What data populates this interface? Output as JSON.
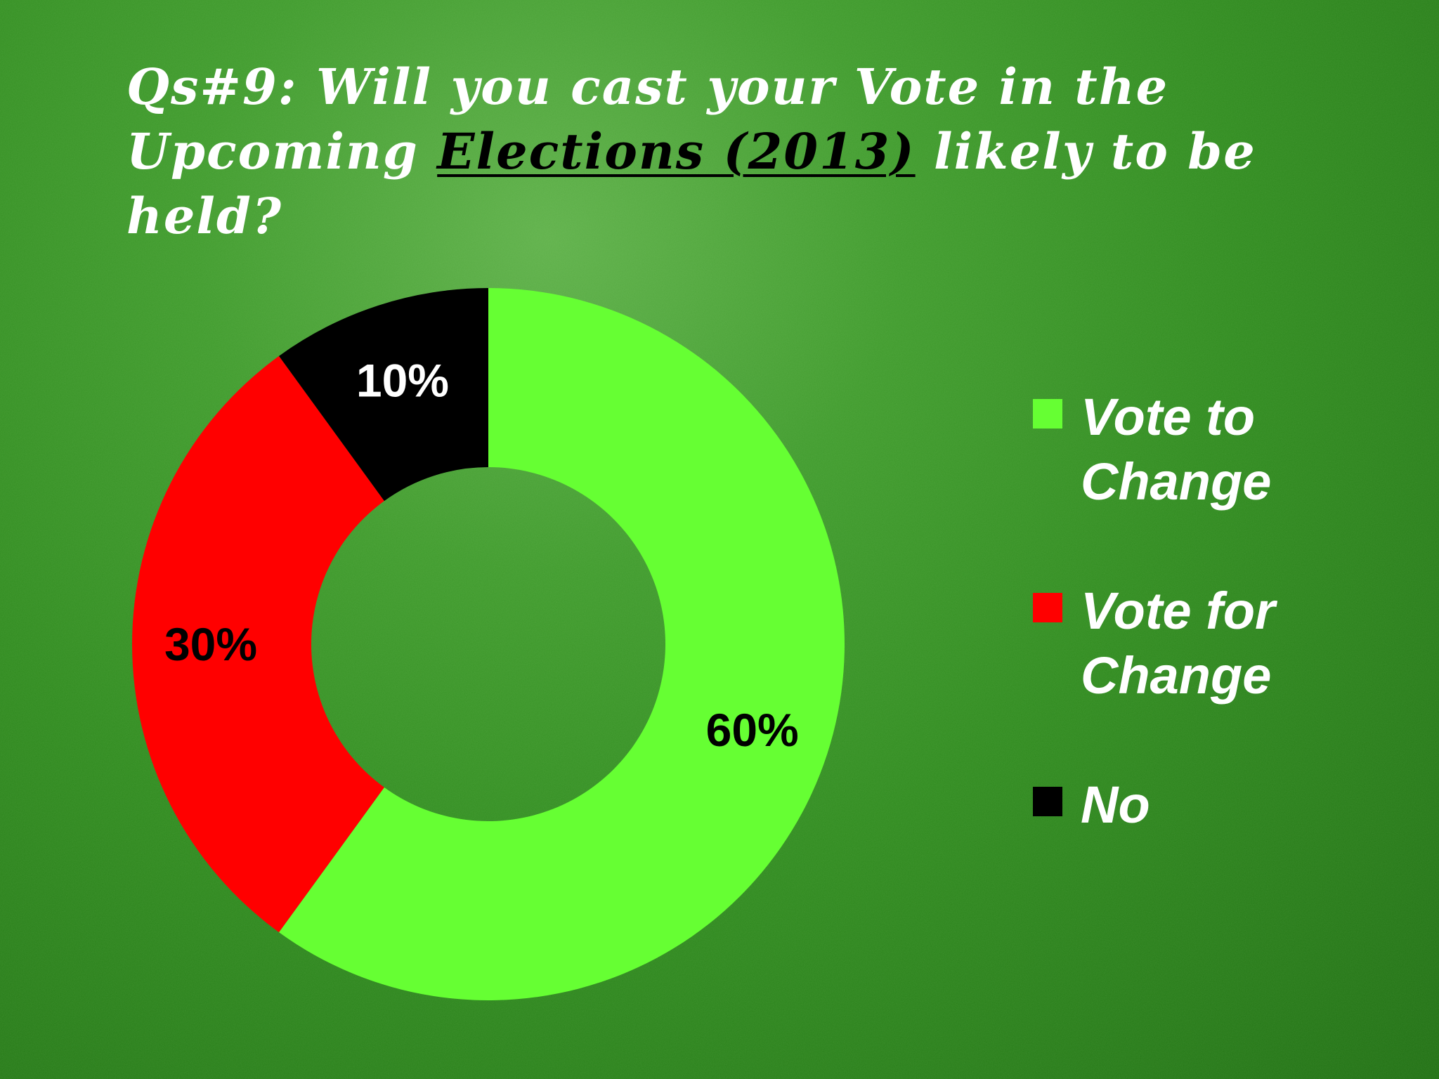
{
  "chart_data": {
    "type": "pie",
    "title": {
      "prefix": "Qs#9: Will you cast your Vote in the Upcoming ",
      "emphasis": "Elections (2013)",
      "suffix": " likely to be held?"
    },
    "slices": [
      {
        "label": "Vote to Change",
        "value": 60,
        "value_label": "60%",
        "color": "#66ff33",
        "label_color": "#000000"
      },
      {
        "label": "Vote for Change",
        "value": 30,
        "value_label": "30%",
        "color": "#ff0000",
        "label_color": "#000000"
      },
      {
        "label": "No",
        "value": 10,
        "value_label": "10%",
        "color": "#000000",
        "label_color": "#ffffff"
      }
    ],
    "donut": true,
    "start": "top",
    "direction": "clockwise",
    "legend_position": "right"
  }
}
